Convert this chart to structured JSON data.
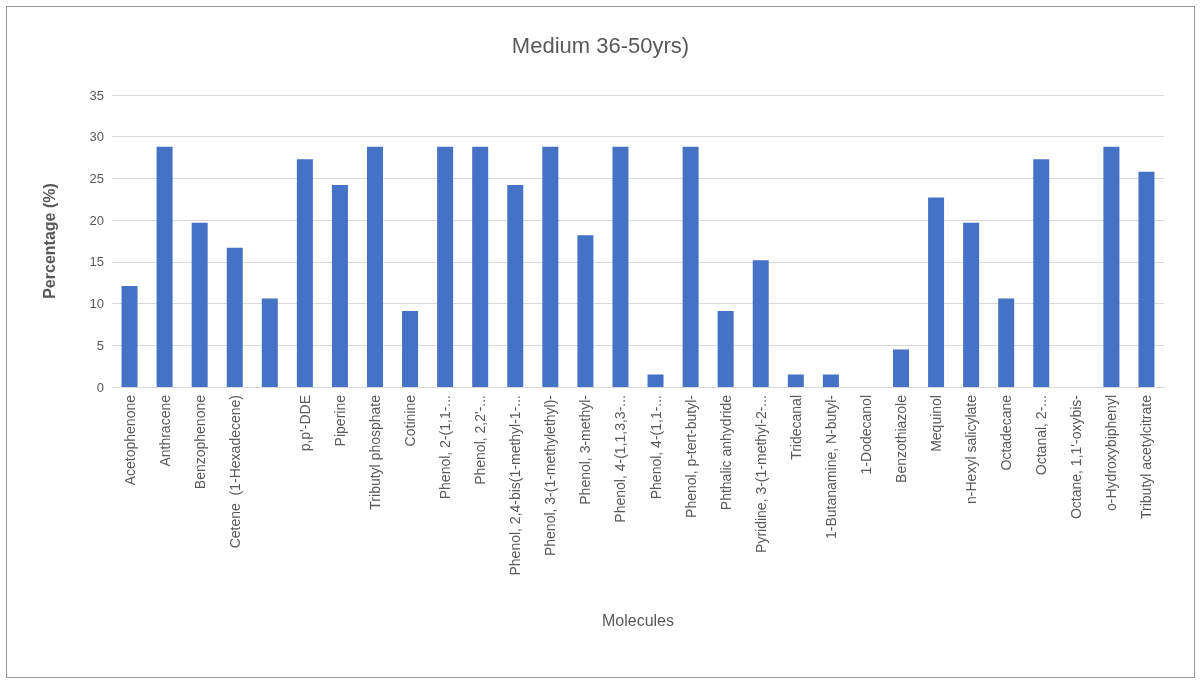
{
  "chart_data": {
    "type": "bar",
    "title": "Medium 36-50yrs)",
    "xlabel": "Molecules",
    "ylabel": "Percentage (%)",
    "categories": [
      "Acetophenone",
      "Anthracene",
      "Benzophenone",
      "Cetene  (1-Hexadecene)",
      null,
      "p,p'-DDE",
      "Piperine",
      "Tributyl phosphate",
      "Cotinine",
      "Phenol, 2-(1,1-...",
      "Phenol, 2,2'-...",
      "Phenol, 2,4-bis(1-methyl-1-...",
      "Phenol, 3-(1-methylethyl)-",
      "Phenol, 3-methyl-",
      "Phenol, 4-(1,1,3,3-...",
      "Phenol, 4-(1,1-...",
      "Phenol, p-tert-butyl-",
      "Phthalic anhydride",
      "Pyridine, 3-(1-methyl-2-...",
      "Tridecanal",
      "1-Butanamine, N-butyl-",
      "1-Dodecanol",
      "Benzothiazole",
      "Mequinol",
      "n-Hexyl salicylate",
      "Octadecane",
      "Octanal, 2-...",
      "Octane, 1,1'-oxybis-",
      "o-Hydroxybiphenyl",
      "Tributyl acetylcitrate"
    ],
    "values": [
      12.1,
      28.8,
      19.7,
      16.7,
      10.6,
      27.3,
      24.2,
      28.8,
      9.1,
      28.8,
      28.8,
      24.2,
      28.8,
      18.2,
      28.8,
      1.5,
      28.8,
      9.1,
      15.2,
      1.5,
      1.5,
      0,
      4.5,
      22.7,
      19.7,
      10.6,
      27.3,
      0,
      28.8,
      25.8
    ],
    "color": "#4472c4",
    "ylim": [
      0,
      35
    ],
    "yticks": [
      0,
      5,
      10,
      15,
      20,
      25,
      30,
      35
    ],
    "grid": "y"
  }
}
